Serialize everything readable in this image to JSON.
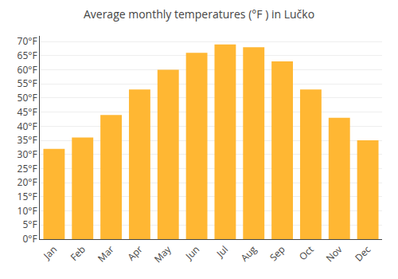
{
  "chart_data": {
    "type": "bar",
    "title": "Average monthly temperatures (°F ) in Lučko",
    "categories": [
      "Jan",
      "Feb",
      "Mar",
      "Apr",
      "May",
      "Jun",
      "Jul",
      "Aug",
      "Sep",
      "Oct",
      "Nov",
      "Dec"
    ],
    "values": [
      32,
      36,
      44,
      53,
      60,
      66,
      69,
      68,
      63,
      53,
      43,
      35
    ],
    "color": "#FFB733",
    "ylim": [
      0,
      72
    ],
    "yticks": [
      {
        "value": 0,
        "label": "0°F"
      },
      {
        "value": 5,
        "label": "5°F"
      },
      {
        "value": 10,
        "label": "10°F"
      },
      {
        "value": 15,
        "label": "15°F"
      },
      {
        "value": 20,
        "label": "20°F"
      },
      {
        "value": 25,
        "label": "25°F"
      },
      {
        "value": 30,
        "label": "30°F"
      },
      {
        "value": 35,
        "label": "35°F"
      },
      {
        "value": 40,
        "label": "40°F"
      },
      {
        "value": 45,
        "label": "45°F"
      },
      {
        "value": 50,
        "label": "50°F"
      },
      {
        "value": 55,
        "label": "55°F"
      },
      {
        "value": 60,
        "label": "60°F"
      },
      {
        "value": 65,
        "label": "65°F"
      },
      {
        "value": 70,
        "label": "70°F"
      }
    ],
    "grid": true
  }
}
